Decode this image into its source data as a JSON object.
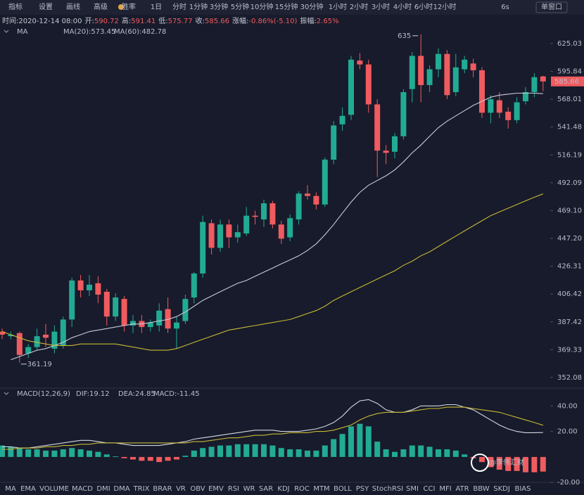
{
  "toolbar": [
    "指标",
    "设置",
    "画线",
    "高级",
    "胜率",
    "1日",
    "分时",
    "1分钟",
    "3分钟",
    "5分钟",
    "10分钟",
    "15分钟",
    "30分钟",
    "1小时",
    "2小时",
    "3小时",
    "4小时",
    "6小时",
    "12小时",
    "6s",
    "单窗口"
  ],
  "info": [
    "时间:2020-12-14 08:00",
    "开:",
    "590.72",
    "高:",
    "591.41",
    "低:",
    "575.77",
    "收:",
    "585.66",
    "涨幅:",
    "-0.86%(-5.10)",
    "振幅:",
    "2.65%"
  ],
  "ma_legend": [
    "MA",
    "MA(20):573.45",
    "MA(60):482.78"
  ],
  "chart_data": [
    {
      "type": "candlestick",
      "up_color": "#22ab94",
      "down_color": "#f05b5f",
      "log": true,
      "ylim": [
        347.4,
        643.4
      ],
      "yticks": [
        625.03,
        595.84,
        568.01,
        541.48,
        516.19,
        492.09,
        {
          "value": 469.1,
          "label": "469.10"
        },
        {
          "value": 447.2,
          "label": "447.20"
        },
        426.31,
        406.42,
        387.42,
        369.33,
        352.08
      ],
      "open": [
        381,
        378,
        380,
        367,
        371,
        379,
        370,
        372,
        389,
        416,
        409,
        414,
        408,
        391,
        403,
        385,
        388,
        384,
        385,
        396,
        383,
        388,
        404,
        421,
        459,
        440,
        458,
        448,
        451,
        465,
        462,
        475,
        458,
        448,
        462,
        483,
        481,
        474,
        512,
        544,
        553,
        607,
        603,
        563,
        520,
        519,
        533,
        578,
        612,
        582,
        598,
        614,
        575,
        598,
        604,
        597,
        555,
        567,
        556,
        548,
        566,
        575,
        590.72
      ],
      "high": [
        383,
        381,
        381,
        373,
        383,
        386,
        385,
        391,
        418,
        420,
        420,
        419,
        410,
        407,
        405,
        392,
        392,
        389,
        400,
        404,
        391,
        406,
        422,
        465,
        462,
        462,
        462,
        458,
        472,
        469,
        478,
        477,
        461,
        466,
        485,
        490,
        484,
        514,
        547,
        560,
        612,
        615,
        608,
        568,
        525,
        536,
        578,
        616,
        635,
        602,
        620,
        618,
        614,
        612,
        609,
        600,
        572,
        575,
        560,
        570,
        580,
        594,
        591.41
      ],
      "low": [
        376,
        376,
        361.19,
        364,
        369,
        371,
        367,
        370,
        384,
        404,
        405,
        400,
        385,
        388,
        381,
        380,
        380,
        381,
        381,
        380,
        370,
        386,
        400,
        418,
        435,
        437,
        440,
        444,
        449,
        458,
        456,
        455,
        443,
        445,
        458,
        478,
        470,
        472,
        508,
        538,
        548,
        598,
        555,
        497,
        508,
        513,
        530,
        565,
        565,
        575,
        590,
        568,
        571,
        594,
        590,
        550,
        545,
        550,
        540,
        545,
        563,
        570,
        575.77
      ],
      "close": [
        379,
        379,
        366,
        371,
        378,
        377,
        381,
        389,
        416,
        409,
        413,
        406,
        391,
        404,
        385,
        388,
        384,
        387,
        395,
        383,
        387,
        403,
        421,
        460,
        440,
        458,
        448,
        452,
        465,
        464,
        475,
        458,
        447,
        463,
        483,
        481,
        474,
        512,
        543,
        552,
        608,
        603,
        563,
        520,
        518,
        533,
        575,
        612,
        582,
        598,
        614,
        572,
        600,
        608,
        597,
        555,
        568,
        555,
        548,
        565,
        575,
        590,
        585.66
      ],
      "series": [
        {
          "name": "MA(20)",
          "color": "#c9cbd8",
          "values": [
            null,
            363,
            365,
            367,
            369,
            370,
            372,
            374,
            377,
            379,
            381,
            382,
            383,
            384,
            385,
            386,
            386,
            387,
            388,
            389,
            391,
            394,
            398,
            402,
            405,
            408,
            411,
            414,
            416,
            419,
            422,
            425,
            428,
            431,
            434,
            438,
            443,
            450,
            458,
            467,
            476,
            484,
            490,
            494,
            498,
            503,
            510,
            518,
            525,
            533,
            541,
            547,
            552,
            557,
            562,
            566,
            570,
            572,
            573,
            574,
            574,
            574,
            573.45
          ]
        },
        {
          "name": "MA(60)",
          "color": "#c9b836",
          "values": [
            381,
            379,
            377,
            375,
            374,
            373,
            372,
            372,
            372,
            373,
            373,
            373,
            373,
            373,
            372,
            371,
            370,
            369,
            369,
            369,
            370,
            372,
            374,
            376,
            378,
            380,
            382,
            383,
            384,
            385,
            386,
            387,
            388,
            389,
            391,
            393,
            395,
            398,
            402,
            405,
            408,
            411,
            414,
            417,
            420,
            423,
            427,
            430,
            434,
            437,
            441,
            445,
            449,
            453,
            457,
            461,
            465,
            468,
            471,
            474,
            477,
            480,
            482.78
          ]
        }
      ],
      "high_label": 635,
      "low_label": 361.19,
      "last_price": 585.66
    },
    {
      "type": "macd",
      "title": "MACD(12,26,9)",
      "legend": [
        "DIF:19.12",
        "DEA:24.85",
        "MACD:-11.45"
      ],
      "ylim": [
        -21,
        49
      ],
      "yticks": [
        {
          "value": 40,
          "label": "40.00"
        },
        {
          "value": 20,
          "label": "20.00"
        },
        {
          "value": -20,
          "label": "-20.00"
        }
      ],
      "up_color": "#22ab94",
      "down_color": "#f05b5f",
      "histogram": [
        9,
        8,
        7,
        6,
        6,
        5,
        5,
        6,
        7,
        6,
        5,
        4,
        2,
        0.5,
        -1,
        -2,
        -3,
        -3,
        -4,
        -3,
        -2,
        1,
        5,
        7,
        8,
        9,
        9,
        10,
        10,
        10,
        10,
        9,
        7,
        6,
        6,
        5,
        5,
        9,
        14,
        18,
        24,
        26,
        24,
        12,
        6,
        4,
        6,
        9,
        9,
        8,
        6,
        6,
        5,
        2,
        -1,
        -4,
        -8,
        -10,
        -11,
        -11,
        -12,
        -12,
        -11.45
      ],
      "series": [
        {
          "name": "DIF",
          "color": "#d6d7e0",
          "values": [
            8,
            8,
            7,
            7,
            8,
            9,
            10,
            11,
            12,
            13,
            13,
            12,
            11,
            11,
            10,
            9,
            9,
            9,
            9,
            10,
            11,
            12,
            14,
            15,
            16,
            17,
            18,
            19,
            20,
            21,
            21,
            21,
            20,
            20,
            20,
            21,
            22,
            24,
            27,
            32,
            39,
            44,
            45,
            42,
            37,
            35,
            35,
            37,
            40,
            40,
            40,
            41,
            41,
            39,
            37,
            33,
            29,
            25,
            22,
            20,
            19,
            19,
            19.12
          ]
        },
        {
          "name": "DEA",
          "color": "#c9b836",
          "values": [
            6,
            6,
            7,
            7,
            7,
            8,
            8,
            9,
            9,
            10,
            10,
            11,
            11,
            11,
            11,
            11,
            11,
            11,
            11,
            11,
            11,
            11,
            12,
            12,
            13,
            14,
            15,
            15,
            16,
            17,
            17,
            18,
            18,
            19,
            19,
            19,
            20,
            20,
            21,
            23,
            25,
            29,
            32,
            34,
            35,
            35,
            35,
            36,
            37,
            38,
            38,
            39,
            39,
            39,
            38,
            37,
            36,
            35,
            33,
            31,
            29,
            27,
            24.85
          ]
        }
      ]
    }
  ],
  "indicator_tabs": [
    "MA",
    "EMA",
    "VOLUME",
    "MACD",
    "DMI",
    "DMA",
    "TRIX",
    "BRAR",
    "VR",
    "OBV",
    "EMV",
    "RSI",
    "WR",
    "SAR",
    "KDJ",
    "ROC",
    "MTM",
    "BOLL",
    "PSY",
    "StochRSI",
    "SMI",
    "CCI",
    "MFI",
    "ATR",
    "BBW",
    "SKDJ",
    "BIAS"
  ],
  "watermark": "@李伟汇财"
}
